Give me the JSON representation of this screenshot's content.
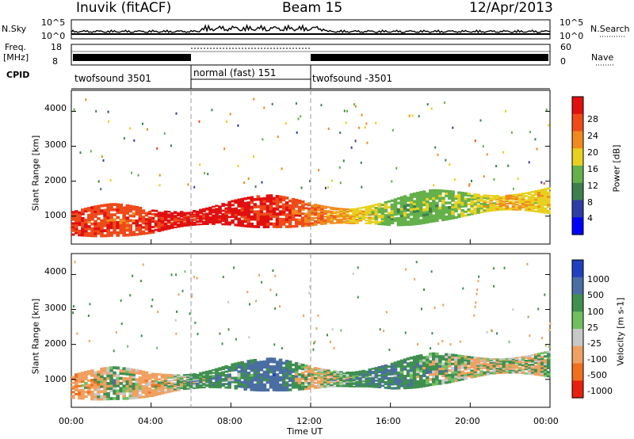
{
  "header": {
    "station": "Inuvik (fitACF)",
    "beam": "Beam 15",
    "date": "12/Apr/2013"
  },
  "nsky_panel": {
    "left_label": "N.Sky",
    "left_ticks": [
      "10^5",
      "10^0"
    ],
    "right_label": "N.Search",
    "right_ticks": [
      "10^5",
      "10^0"
    ]
  },
  "freq_panel": {
    "left_label_1": "Freq.",
    "left_label_2": "[MHz]",
    "left_ticks": [
      "18",
      "8"
    ],
    "right_label": "Nave",
    "right_ticks": [
      "60",
      "0"
    ]
  },
  "cpid": {
    "label": "CPID",
    "segments": [
      {
        "text": "twofsound 3501",
        "start_h": 0,
        "end_h": 6
      },
      {
        "text": "normal (fast) 151",
        "start_h": 6,
        "end_h": 12
      },
      {
        "text": "twofsound -3501",
        "start_h": 12,
        "end_h": 24
      }
    ]
  },
  "axes": {
    "ylabel": "Slant Range [km]",
    "y_ticks": [
      "1000",
      "2000",
      "3000",
      "4000"
    ],
    "x_ticks": [
      "00:00",
      "04:00",
      "08:00",
      "12:00",
      "16:00",
      "20:00",
      "00:00"
    ],
    "xlabel": "Time UT"
  },
  "power_colorbar": {
    "label": "Power [dB]",
    "ticks": [
      "4",
      "8",
      "12",
      "16",
      "20",
      "24",
      "28"
    ],
    "colors": [
      "#0000ff",
      "#2e3ea7",
      "#3f7f4f",
      "#64b04a",
      "#e8d020",
      "#f08a1e",
      "#ee4a1a",
      "#e01010"
    ]
  },
  "velocity_colorbar": {
    "label": "Velocity [m s-1]",
    "ticks": [
      "1000",
      "500",
      "100",
      "25",
      "-25",
      "-100",
      "-500",
      "-1000"
    ],
    "colors": [
      "#2040c0",
      "#4a6ea2",
      "#3f8f4f",
      "#70c060",
      "#c8c8c8",
      "#f0a060",
      "#f07020",
      "#e82010"
    ]
  },
  "chart_data": [
    {
      "type": "heatmap",
      "name": "Power",
      "x_range_hours": [
        0,
        24
      ],
      "y_range_km": [
        200,
        4600
      ],
      "units": "dB",
      "band_center_km": [
        [
          0,
          800
        ],
        [
          2,
          900
        ],
        [
          4,
          850
        ],
        [
          6,
          950
        ],
        [
          8,
          1100
        ],
        [
          10,
          1150
        ],
        [
          12,
          1050
        ],
        [
          14,
          1000
        ],
        [
          16,
          1100
        ],
        [
          18,
          1300
        ],
        [
          20,
          1350
        ],
        [
          22,
          1400
        ],
        [
          24,
          1450
        ]
      ],
      "band_power_db": [
        [
          0,
          26
        ],
        [
          3,
          24
        ],
        [
          5,
          28
        ],
        [
          8,
          28
        ],
        [
          10,
          26
        ],
        [
          12,
          22
        ],
        [
          14,
          18
        ],
        [
          16,
          12
        ],
        [
          18,
          12
        ],
        [
          20,
          14
        ],
        [
          22,
          18
        ],
        [
          24,
          16
        ]
      ]
    },
    {
      "type": "heatmap",
      "name": "Velocity",
      "x_range_hours": [
        0,
        24
      ],
      "y_range_km": [
        200,
        4600
      ],
      "units": "m/s",
      "band_center_km": [
        [
          0,
          800
        ],
        [
          2,
          900
        ],
        [
          4,
          850
        ],
        [
          6,
          950
        ],
        [
          8,
          1100
        ],
        [
          10,
          1150
        ],
        [
          12,
          1050
        ],
        [
          14,
          1000
        ],
        [
          16,
          1100
        ],
        [
          18,
          1300
        ],
        [
          20,
          1350
        ],
        [
          22,
          1400
        ],
        [
          24,
          1450
        ]
      ],
      "band_velocity_ms": [
        [
          0,
          -300
        ],
        [
          2,
          100
        ],
        [
          4,
          -200
        ],
        [
          6,
          150
        ],
        [
          8,
          200
        ],
        [
          10,
          500
        ],
        [
          12,
          -100
        ],
        [
          14,
          200
        ],
        [
          16,
          300
        ],
        [
          18,
          100
        ],
        [
          20,
          0
        ],
        [
          22,
          0
        ],
        [
          24,
          0
        ]
      ]
    }
  ]
}
